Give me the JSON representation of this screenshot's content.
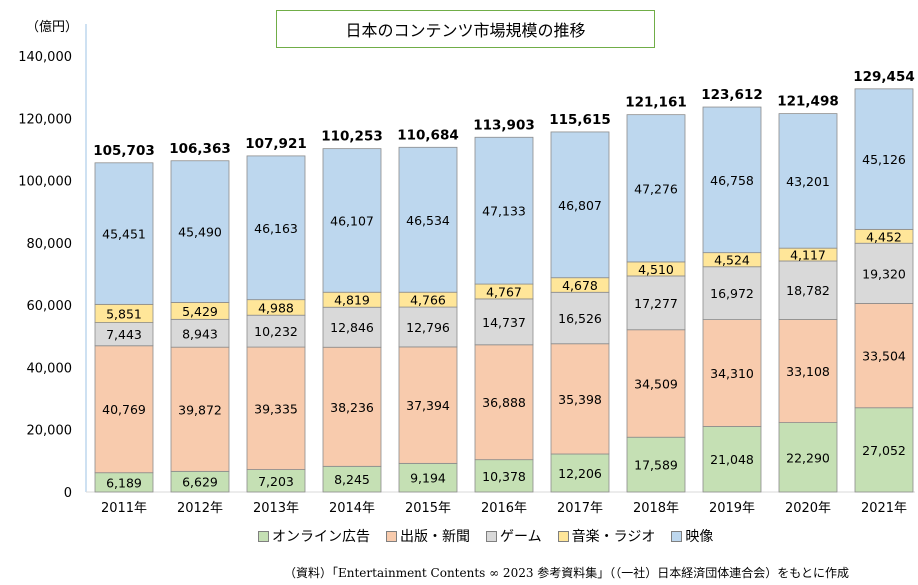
{
  "chart_data": {
    "type": "bar",
    "stacked": true,
    "title": "日本のコンテンツ市場規模の推移",
    "ylabel": "（億円）",
    "xlabel": "",
    "ylim": [
      0,
      140000
    ],
    "yticks": [
      0,
      20000,
      40000,
      60000,
      80000,
      100000,
      120000,
      140000
    ],
    "ytick_labels": [
      "0",
      "20,000",
      "40,000",
      "60,000",
      "80,000",
      "100,000",
      "120,000",
      "140,000"
    ],
    "categories": [
      "2011年",
      "2012年",
      "2013年",
      "2014年",
      "2015年",
      "2016年",
      "2017年",
      "2018年",
      "2019年",
      "2020年",
      "2021年"
    ],
    "series": [
      {
        "name": "オンライン広告",
        "color": "#c5e0b4",
        "values": [
          6189,
          6629,
          7203,
          8245,
          9194,
          10378,
          12206,
          17589,
          21048,
          22290,
          27052
        ]
      },
      {
        "name": "出版・新聞",
        "color": "#f8cbad",
        "values": [
          40769,
          39872,
          39335,
          38236,
          37394,
          36888,
          35398,
          34509,
          34310,
          33108,
          33504
        ]
      },
      {
        "name": "ゲーム",
        "color": "#d9d9d9",
        "values": [
          7443,
          8943,
          10232,
          12846,
          12796,
          14737,
          16526,
          17277,
          16972,
          18782,
          19320
        ]
      },
      {
        "name": "音楽・ラジオ",
        "color": "#ffe699",
        "values": [
          5851,
          5429,
          4988,
          4819,
          4766,
          4767,
          4678,
          4510,
          4524,
          4117,
          4452
        ]
      },
      {
        "name": "映像",
        "color": "#bdd7ee",
        "values": [
          45451,
          45490,
          46163,
          46107,
          46534,
          47133,
          46807,
          47276,
          46758,
          43201,
          45126
        ]
      }
    ],
    "totals": [
      105703,
      106363,
      107921,
      110253,
      110684,
      113903,
      115615,
      121161,
      123612,
      121498,
      129454
    ],
    "legend_position": "bottom",
    "grid": false
  },
  "source": "（資料）「Entertainment Contents ∞ 2023 参考資料集」（（一社）日本経済団体連合会）をもとに作成"
}
